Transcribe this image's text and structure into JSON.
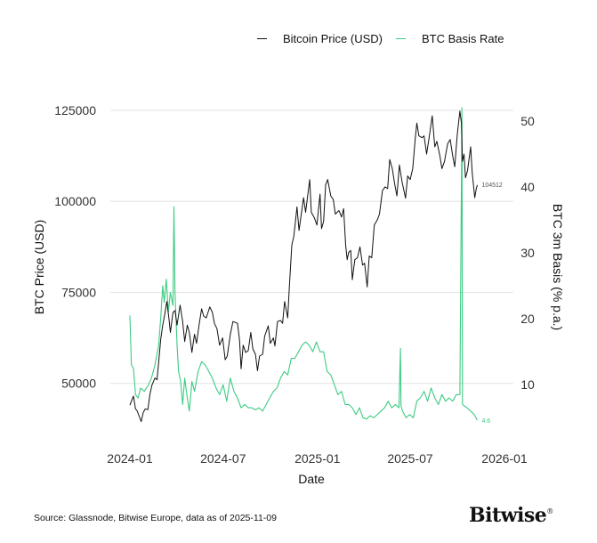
{
  "legend": {
    "price_label": "Bitcoin Price (USD)",
    "basis_label": "BTC Basis Rate"
  },
  "footer": {
    "source": "Source: Glassnode, Bitwise Europe, data as of 2025-11-09",
    "logo": "Bitwise"
  },
  "chart_data": {
    "type": "line",
    "title": "",
    "xlabel": "Date",
    "ylabel_left": "BTC Price (USD)",
    "ylabel_right": "BTC 3m Basis (% p.a.)",
    "x_ticks": [
      "2024-01",
      "2024-07",
      "2025-01",
      "2025-07",
      "2026-01"
    ],
    "y_left_ticks": [
      50000,
      75000,
      100000,
      125000
    ],
    "y_right_ticks": [
      10,
      20,
      30,
      40,
      50
    ],
    "xlim": [
      "2024-01-01",
      "2026-01-01"
    ],
    "ylim_left": [
      35500,
      125000
    ],
    "ylim_right": [
      2.2,
      51.6
    ],
    "grid": "horizontal (left axis)",
    "legend_position": "top",
    "colors": {
      "price": "#111111",
      "basis": "#3ccb82",
      "grid": "#e6e6e6"
    },
    "end_labels": {
      "price": "104512",
      "basis": "4.6"
    },
    "series": [
      {
        "name": "Bitcoin Price (USD)",
        "axis": "left",
        "points": [
          [
            "2024-01-01",
            44000
          ],
          [
            "2024-01-05",
            45500
          ],
          [
            "2024-01-08",
            46500
          ],
          [
            "2024-01-12",
            43000
          ],
          [
            "2024-01-15",
            42500
          ],
          [
            "2024-01-19",
            41000
          ],
          [
            "2024-01-23",
            39500
          ],
          [
            "2024-01-27",
            42000
          ],
          [
            "2024-01-31",
            43000
          ],
          [
            "2024-02-05",
            42800
          ],
          [
            "2024-02-09",
            47000
          ],
          [
            "2024-02-13",
            49500
          ],
          [
            "2024-02-19",
            51500
          ],
          [
            "2024-02-23",
            51000
          ],
          [
            "2024-02-27",
            57000
          ],
          [
            "2024-03-01",
            62000
          ],
          [
            "2024-03-05",
            66000
          ],
          [
            "2024-03-09",
            69000
          ],
          [
            "2024-03-13",
            72500
          ],
          [
            "2024-03-17",
            68000
          ],
          [
            "2024-03-20",
            64000
          ],
          [
            "2024-03-25",
            69500
          ],
          [
            "2024-03-29",
            70000
          ],
          [
            "2024-04-02",
            66000
          ],
          [
            "2024-04-08",
            71500
          ],
          [
            "2024-04-13",
            67000
          ],
          [
            "2024-04-17",
            61500
          ],
          [
            "2024-04-22",
            66000
          ],
          [
            "2024-04-26",
            64000
          ],
          [
            "2024-05-01",
            58500
          ],
          [
            "2024-05-06",
            63500
          ],
          [
            "2024-05-10",
            61000
          ],
          [
            "2024-05-15",
            66000
          ],
          [
            "2024-05-20",
            70500
          ],
          [
            "2024-05-24",
            68500
          ],
          [
            "2024-05-29",
            68000
          ],
          [
            "2024-06-05",
            71000
          ],
          [
            "2024-06-10",
            69500
          ],
          [
            "2024-06-14",
            66500
          ],
          [
            "2024-06-19",
            65000
          ],
          [
            "2024-06-24",
            60500
          ],
          [
            "2024-06-30",
            62500
          ],
          [
            "2024-07-05",
            56500
          ],
          [
            "2024-07-09",
            57500
          ],
          [
            "2024-07-15",
            63500
          ],
          [
            "2024-07-20",
            67000
          ],
          [
            "2024-07-29",
            66500
          ],
          [
            "2024-08-02",
            62000
          ],
          [
            "2024-08-05",
            54000
          ],
          [
            "2024-08-09",
            60500
          ],
          [
            "2024-08-14",
            58500
          ],
          [
            "2024-08-19",
            59000
          ],
          [
            "2024-08-24",
            64000
          ],
          [
            "2024-08-28",
            59500
          ],
          [
            "2024-09-02",
            58000
          ],
          [
            "2024-09-06",
            53500
          ],
          [
            "2024-09-10",
            57500
          ],
          [
            "2024-09-16",
            58000
          ],
          [
            "2024-09-20",
            63000
          ],
          [
            "2024-09-27",
            65800
          ],
          [
            "2024-10-01",
            61000
          ],
          [
            "2024-10-07",
            62500
          ],
          [
            "2024-10-10",
            60300
          ],
          [
            "2024-10-15",
            67000
          ],
          [
            "2024-10-21",
            67300
          ],
          [
            "2024-10-25",
            66500
          ],
          [
            "2024-10-29",
            72500
          ],
          [
            "2024-11-04",
            68000
          ],
          [
            "2024-11-07",
            76000
          ],
          [
            "2024-11-12",
            88000
          ],
          [
            "2024-11-16",
            90500
          ],
          [
            "2024-11-22",
            98500
          ],
          [
            "2024-11-26",
            92000
          ],
          [
            "2024-12-01",
            97000
          ],
          [
            "2024-12-05",
            101000
          ],
          [
            "2024-12-09",
            97000
          ],
          [
            "2024-12-13",
            101500
          ],
          [
            "2024-12-17",
            106000
          ],
          [
            "2024-12-20",
            97000
          ],
          [
            "2024-12-26",
            95500
          ],
          [
            "2024-12-31",
            93500
          ],
          [
            "2025-01-06",
            102000
          ],
          [
            "2025-01-09",
            92500
          ],
          [
            "2025-01-13",
            94500
          ],
          [
            "2025-01-17",
            104500
          ],
          [
            "2025-01-21",
            106000
          ],
          [
            "2025-01-27",
            101500
          ],
          [
            "2025-02-01",
            100500
          ],
          [
            "2025-02-05",
            96500
          ],
          [
            "2025-02-12",
            97500
          ],
          [
            "2025-02-17",
            95700
          ],
          [
            "2025-02-21",
            98000
          ],
          [
            "2025-02-25",
            88000
          ],
          [
            "2025-02-28",
            84000
          ],
          [
            "2025-03-03",
            86000
          ],
          [
            "2025-03-07",
            86500
          ],
          [
            "2025-03-10",
            78500
          ],
          [
            "2025-03-15",
            84000
          ],
          [
            "2025-03-20",
            84500
          ],
          [
            "2025-03-25",
            87500
          ],
          [
            "2025-03-30",
            82500
          ],
          [
            "2025-04-03",
            83000
          ],
          [
            "2025-04-08",
            76500
          ],
          [
            "2025-04-12",
            85000
          ],
          [
            "2025-04-17",
            84500
          ],
          [
            "2025-04-22",
            93500
          ],
          [
            "2025-04-28",
            95000
          ],
          [
            "2025-05-02",
            96500
          ],
          [
            "2025-05-08",
            103000
          ],
          [
            "2025-05-13",
            104000
          ],
          [
            "2025-05-18",
            103500
          ],
          [
            "2025-05-22",
            111500
          ],
          [
            "2025-05-27",
            109000
          ],
          [
            "2025-06-01",
            104500
          ],
          [
            "2025-06-05",
            101500
          ],
          [
            "2025-06-10",
            110000
          ],
          [
            "2025-06-15",
            105500
          ],
          [
            "2025-06-22",
            100900
          ],
          [
            "2025-06-26",
            107000
          ],
          [
            "2025-07-01",
            106000
          ],
          [
            "2025-07-06",
            109000
          ],
          [
            "2025-07-11",
            117500
          ],
          [
            "2025-07-14",
            121500
          ],
          [
            "2025-07-18",
            118000
          ],
          [
            "2025-07-24",
            117500
          ],
          [
            "2025-07-28",
            118000
          ],
          [
            "2025-08-02",
            113000
          ],
          [
            "2025-08-07",
            117500
          ],
          [
            "2025-08-13",
            123500
          ],
          [
            "2025-08-18",
            115000
          ],
          [
            "2025-08-22",
            116500
          ],
          [
            "2025-08-28",
            112500
          ],
          [
            "2025-09-01",
            109000
          ],
          [
            "2025-09-06",
            111000
          ],
          [
            "2025-09-12",
            115800
          ],
          [
            "2025-09-17",
            117000
          ],
          [
            "2025-09-22",
            112500
          ],
          [
            "2025-09-26",
            109500
          ],
          [
            "2025-10-01",
            118500
          ],
          [
            "2025-10-06",
            124800
          ],
          [
            "2025-10-09",
            121500
          ],
          [
            "2025-10-11",
            111000
          ],
          [
            "2025-10-14",
            113000
          ],
          [
            "2025-10-17",
            106500
          ],
          [
            "2025-10-21",
            108500
          ],
          [
            "2025-10-27",
            115000
          ],
          [
            "2025-10-30",
            108000
          ],
          [
            "2025-11-04",
            101000
          ],
          [
            "2025-11-07",
            103500
          ],
          [
            "2025-11-09",
            104512
          ]
        ]
      },
      {
        "name": "BTC Basis Rate",
        "axis": "right",
        "points": [
          [
            "2024-01-01",
            20.5
          ],
          [
            "2024-01-04",
            13
          ],
          [
            "2024-01-08",
            12.5
          ],
          [
            "2024-01-12",
            8.5
          ],
          [
            "2024-01-17",
            8
          ],
          [
            "2024-01-22",
            9.5
          ],
          [
            "2024-01-29",
            9
          ],
          [
            "2024-02-05",
            9.8
          ],
          [
            "2024-02-12",
            11
          ],
          [
            "2024-02-19",
            13
          ],
          [
            "2024-02-26",
            16
          ],
          [
            "2024-03-01",
            20
          ],
          [
            "2024-03-05",
            25
          ],
          [
            "2024-03-08",
            22.5
          ],
          [
            "2024-03-12",
            26
          ],
          [
            "2024-03-16",
            21
          ],
          [
            "2024-03-20",
            24
          ],
          [
            "2024-03-25",
            22
          ],
          [
            "2024-03-27",
            37
          ],
          [
            "2024-03-29",
            24
          ],
          [
            "2024-04-02",
            16
          ],
          [
            "2024-04-05",
            12
          ],
          [
            "2024-04-09",
            10.5
          ],
          [
            "2024-04-13",
            7
          ],
          [
            "2024-04-17",
            11
          ],
          [
            "2024-04-22",
            8
          ],
          [
            "2024-04-26",
            6
          ],
          [
            "2024-05-01",
            10.5
          ],
          [
            "2024-05-06",
            9
          ],
          [
            "2024-05-13",
            12
          ],
          [
            "2024-05-20",
            13.5
          ],
          [
            "2024-05-27",
            13
          ],
          [
            "2024-06-03",
            12
          ],
          [
            "2024-06-10",
            11
          ],
          [
            "2024-06-17",
            9.5
          ],
          [
            "2024-06-24",
            8.5
          ],
          [
            "2024-07-01",
            10
          ],
          [
            "2024-07-08",
            7.5
          ],
          [
            "2024-07-15",
            11
          ],
          [
            "2024-07-22",
            9
          ],
          [
            "2024-07-29",
            8
          ],
          [
            "2024-08-05",
            6.5
          ],
          [
            "2024-08-12",
            7
          ],
          [
            "2024-08-19",
            6.5
          ],
          [
            "2024-08-26",
            6.5
          ],
          [
            "2024-09-02",
            6.2
          ],
          [
            "2024-09-09",
            6.5
          ],
          [
            "2024-09-16",
            6
          ],
          [
            "2024-09-23",
            7
          ],
          [
            "2024-09-30",
            8
          ],
          [
            "2024-10-07",
            9
          ],
          [
            "2024-10-14",
            9.5
          ],
          [
            "2024-10-21",
            11
          ],
          [
            "2024-10-28",
            12
          ],
          [
            "2024-11-04",
            11.5
          ],
          [
            "2024-11-11",
            14
          ],
          [
            "2024-11-18",
            14
          ],
          [
            "2024-11-25",
            15
          ],
          [
            "2024-12-02",
            16
          ],
          [
            "2024-12-09",
            16.5
          ],
          [
            "2024-12-16",
            16
          ],
          [
            "2024-12-23",
            15
          ],
          [
            "2024-12-30",
            16.5
          ],
          [
            "2025-01-06",
            15
          ],
          [
            "2025-01-13",
            15
          ],
          [
            "2025-01-20",
            12
          ],
          [
            "2025-01-27",
            11.5
          ],
          [
            "2025-02-03",
            10
          ],
          [
            "2025-02-10",
            8.5
          ],
          [
            "2025-02-17",
            9
          ],
          [
            "2025-02-24",
            7
          ],
          [
            "2025-03-03",
            7
          ],
          [
            "2025-03-10",
            6.5
          ],
          [
            "2025-03-17",
            5.5
          ],
          [
            "2025-03-24",
            6.5
          ],
          [
            "2025-03-31",
            5
          ],
          [
            "2025-04-07",
            4.8
          ],
          [
            "2025-04-14",
            5.3
          ],
          [
            "2025-04-21",
            5
          ],
          [
            "2025-04-28",
            5.5
          ],
          [
            "2025-05-05",
            6
          ],
          [
            "2025-05-12",
            6.5
          ],
          [
            "2025-05-19",
            7.5
          ],
          [
            "2025-05-26",
            6.5
          ],
          [
            "2025-06-02",
            7
          ],
          [
            "2025-06-09",
            6.5
          ],
          [
            "2025-06-12",
            15.5
          ],
          [
            "2025-06-13",
            6.8
          ],
          [
            "2025-06-16",
            6
          ],
          [
            "2025-06-23",
            5
          ],
          [
            "2025-06-30",
            5.5
          ],
          [
            "2025-07-07",
            5
          ],
          [
            "2025-07-14",
            7.5
          ],
          [
            "2025-07-21",
            8
          ],
          [
            "2025-07-28",
            9
          ],
          [
            "2025-08-04",
            7.5
          ],
          [
            "2025-08-11",
            9.5
          ],
          [
            "2025-08-18",
            8
          ],
          [
            "2025-08-25",
            7
          ],
          [
            "2025-09-01",
            8.5
          ],
          [
            "2025-09-08",
            7.5
          ],
          [
            "2025-09-15",
            8
          ],
          [
            "2025-09-22",
            7.5
          ],
          [
            "2025-09-29",
            8.5
          ],
          [
            "2025-10-06",
            8.5
          ],
          [
            "2025-10-10",
            52
          ],
          [
            "2025-10-11",
            7
          ],
          [
            "2025-10-14",
            6.8
          ],
          [
            "2025-10-20",
            6.5
          ],
          [
            "2025-10-27",
            6
          ],
          [
            "2025-11-03",
            5.5
          ],
          [
            "2025-11-09",
            4.6
          ]
        ]
      }
    ]
  }
}
